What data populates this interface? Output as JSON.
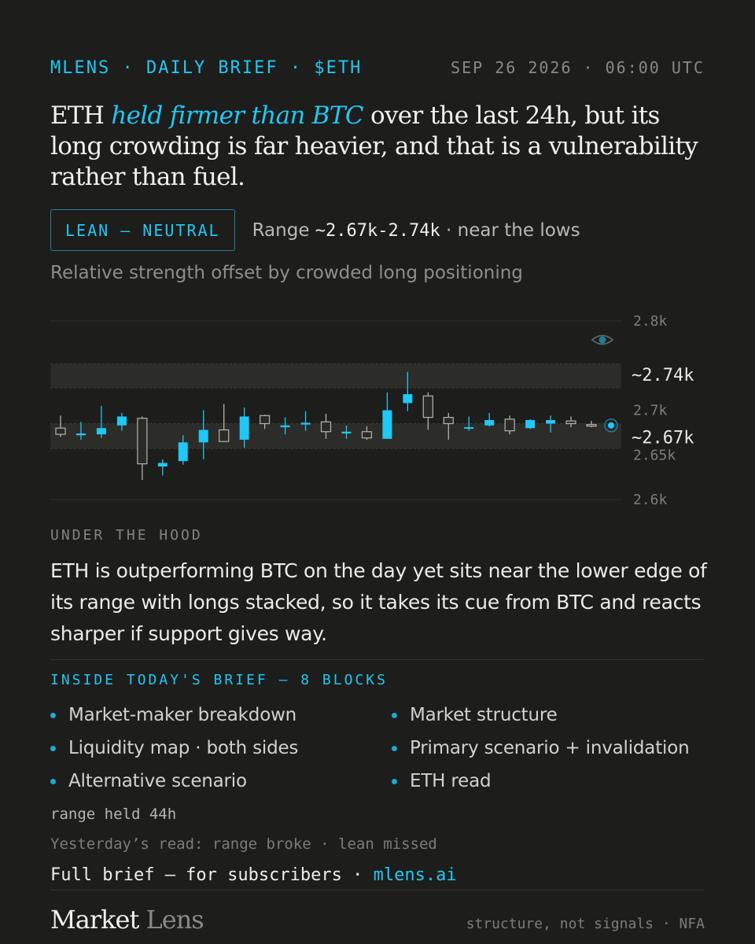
{
  "header": {
    "brand": "MLENS · DAILY BRIEF · $ETH",
    "date": "SEP 26 2026 · 06:00 UTC"
  },
  "headline": {
    "pre": "ETH ",
    "accent": "held firmer than BTC",
    "post": " over the last 24h, but its long crowding is far heavier, and that is a vulnerability rather than fuel."
  },
  "lean": {
    "badge": "LEAN — NEUTRAL",
    "range_prefix": "Range ",
    "range_value": "~2.67k-2.74k",
    "range_suffix": " · near the lows"
  },
  "subtitle": "Relative strength offset by crowded long positioning",
  "chart_data": {
    "type": "candlestick",
    "y_ticks": [
      "2.8k",
      "2.7k",
      "2.65k",
      "2.6k"
    ],
    "y_tick_values": [
      2800,
      2700,
      2650,
      2600
    ],
    "level_labels": [
      "~2.74k",
      "~2.67k"
    ],
    "level_values": [
      2740,
      2670
    ],
    "zones": [
      [
        2725,
        2752
      ],
      [
        2657,
        2685
      ]
    ],
    "ylim": [
      2600,
      2800
    ],
    "colors": {
      "up": "#1fc8f5",
      "down_fill": "#2a2a27",
      "down_stroke": "#b4b4ae",
      "grid": "#2e2e2b",
      "zone": "#2c2c29",
      "zone_border": "#3a3a36"
    },
    "candles": [
      {
        "o": 2680,
        "h": 2694,
        "l": 2670,
        "c": 2673
      },
      {
        "o": 2672,
        "h": 2687,
        "l": 2667,
        "c": 2674
      },
      {
        "o": 2673,
        "h": 2705,
        "l": 2669,
        "c": 2680
      },
      {
        "o": 2683,
        "h": 2697,
        "l": 2677,
        "c": 2693
      },
      {
        "o": 2691,
        "h": 2693,
        "l": 2622,
        "c": 2640
      },
      {
        "o": 2637,
        "h": 2645,
        "l": 2627,
        "c": 2641
      },
      {
        "o": 2643,
        "h": 2672,
        "l": 2639,
        "c": 2664
      },
      {
        "o": 2664,
        "h": 2700,
        "l": 2645,
        "c": 2678
      },
      {
        "o": 2678,
        "h": 2707,
        "l": 2665,
        "c": 2665
      },
      {
        "o": 2667,
        "h": 2703,
        "l": 2658,
        "c": 2693
      },
      {
        "o": 2694,
        "h": 2695,
        "l": 2679,
        "c": 2685
      },
      {
        "o": 2681,
        "h": 2692,
        "l": 2673,
        "c": 2683
      },
      {
        "o": 2684,
        "h": 2699,
        "l": 2677,
        "c": 2686
      },
      {
        "o": 2687,
        "h": 2696,
        "l": 2668,
        "c": 2676
      },
      {
        "o": 2674,
        "h": 2683,
        "l": 2668,
        "c": 2676
      },
      {
        "o": 2676,
        "h": 2682,
        "l": 2667,
        "c": 2669
      },
      {
        "o": 2668,
        "h": 2720,
        "l": 2668,
        "c": 2700
      },
      {
        "o": 2708,
        "h": 2743,
        "l": 2699,
        "c": 2718
      },
      {
        "o": 2716,
        "h": 2720,
        "l": 2678,
        "c": 2692
      },
      {
        "o": 2692,
        "h": 2697,
        "l": 2667,
        "c": 2685
      },
      {
        "o": 2680,
        "h": 2693,
        "l": 2677,
        "c": 2681
      },
      {
        "o": 2683,
        "h": 2697,
        "l": 2682,
        "c": 2689
      },
      {
        "o": 2690,
        "h": 2694,
        "l": 2673,
        "c": 2677
      },
      {
        "o": 2680,
        "h": 2690,
        "l": 2679,
        "c": 2689
      },
      {
        "o": 2685,
        "h": 2694,
        "l": 2675,
        "c": 2689
      },
      {
        "o": 2688,
        "h": 2693,
        "l": 2681,
        "c": 2685
      },
      {
        "o": 2684,
        "h": 2688,
        "l": 2681,
        "c": 2683
      }
    ],
    "last_price": 2683
  },
  "hood": {
    "label": "UNDER THE HOOD",
    "text": "ETH is outperforming BTC on the day yet sits near the lower edge of its range with longs stacked, so it takes its cue from BTC and reacts sharper if support gives way."
  },
  "inside": {
    "label": "INSIDE TODAY'S BRIEF — 8 BLOCKS",
    "items": [
      "Market-maker breakdown",
      "Market structure",
      "Liquidity map · both sides",
      "Primary scenario + invalidation",
      "Alternative scenario",
      "ETH read"
    ]
  },
  "status": {
    "held": "range held 44h",
    "yesterday": "Yesterday’s read: range broke · lean missed"
  },
  "cta": {
    "text": "Full brief — for subscribers · ",
    "link": "mlens.ai"
  },
  "footer": {
    "logo_word1": "Market",
    "logo_word2": " Lens",
    "tagline": "structure, not signals · NFA"
  },
  "icons": {
    "eye": "eye-icon",
    "last_price": "target-dot-icon"
  }
}
